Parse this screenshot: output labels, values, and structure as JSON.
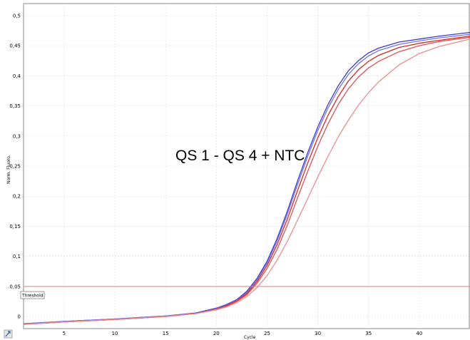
{
  "chart_data": {
    "type": "line",
    "title": "",
    "xlabel": "Cycle",
    "ylabel": "Norm. Fluoro.",
    "xlim": [
      1,
      45
    ],
    "ylim": [
      -0.02,
      0.52
    ],
    "x_ticks": [
      5,
      10,
      15,
      20,
      25,
      30,
      35,
      40
    ],
    "x_tick_labels": [
      "5",
      "10",
      "15",
      "20",
      "25",
      "30",
      "35",
      "40"
    ],
    "y_ticks": [
      0,
      0.05,
      0.1,
      0.15,
      0.2,
      0.25,
      0.3,
      0.35,
      0.4,
      0.45,
      0.5
    ],
    "y_tick_labels": [
      "0",
      "0,05",
      "0,1",
      "0,15",
      "0,2",
      "0,25",
      "0,3",
      "0,35",
      "0,4",
      "0,45",
      "0,5"
    ],
    "grid": true,
    "annotation": "QS 1 - QS 4 + NTC",
    "threshold": {
      "label": "Threshold",
      "value": 0.05,
      "color": "#e87a7a"
    },
    "series": [
      {
        "color": "#3a3ad0",
        "values": [
          [
            1,
            -0.012
          ],
          [
            5,
            -0.008
          ],
          [
            10,
            -0.004
          ],
          [
            15,
            0.001
          ],
          [
            18,
            0.006
          ],
          [
            20,
            0.014
          ],
          [
            21,
            0.02
          ],
          [
            22,
            0.028
          ],
          [
            23,
            0.042
          ],
          [
            24,
            0.063
          ],
          [
            25,
            0.092
          ],
          [
            26,
            0.13
          ],
          [
            27,
            0.175
          ],
          [
            28,
            0.225
          ],
          [
            29,
            0.272
          ],
          [
            30,
            0.315
          ],
          [
            31,
            0.352
          ],
          [
            32,
            0.383
          ],
          [
            33,
            0.408
          ],
          [
            34,
            0.425
          ],
          [
            35,
            0.438
          ],
          [
            36,
            0.446
          ],
          [
            38,
            0.456
          ],
          [
            40,
            0.461
          ],
          [
            42,
            0.466
          ],
          [
            45,
            0.472
          ]
        ]
      },
      {
        "color": "#7474e0",
        "values": [
          [
            1,
            -0.012
          ],
          [
            5,
            -0.008
          ],
          [
            10,
            -0.004
          ],
          [
            15,
            0.001
          ],
          [
            18,
            0.005
          ],
          [
            20,
            0.013
          ],
          [
            21,
            0.019
          ],
          [
            22,
            0.027
          ],
          [
            23,
            0.04
          ],
          [
            24,
            0.061
          ],
          [
            25,
            0.089
          ],
          [
            26,
            0.126
          ],
          [
            27,
            0.17
          ],
          [
            28,
            0.219
          ],
          [
            29,
            0.266
          ],
          [
            30,
            0.309
          ],
          [
            31,
            0.346
          ],
          [
            32,
            0.377
          ],
          [
            33,
            0.402
          ],
          [
            34,
            0.42
          ],
          [
            35,
            0.433
          ],
          [
            36,
            0.442
          ],
          [
            38,
            0.452
          ],
          [
            40,
            0.458
          ],
          [
            42,
            0.463
          ],
          [
            45,
            0.469
          ]
        ]
      },
      {
        "color": "#d42626",
        "values": [
          [
            1,
            -0.013
          ],
          [
            5,
            -0.009
          ],
          [
            10,
            -0.005
          ],
          [
            15,
            0.0
          ],
          [
            18,
            0.005
          ],
          [
            20,
            0.012
          ],
          [
            21,
            0.018
          ],
          [
            22,
            0.026
          ],
          [
            23,
            0.038
          ],
          [
            24,
            0.058
          ],
          [
            25,
            0.085
          ],
          [
            26,
            0.12
          ],
          [
            27,
            0.162
          ],
          [
            28,
            0.209
          ],
          [
            29,
            0.255
          ],
          [
            30,
            0.297
          ],
          [
            31,
            0.334
          ],
          [
            32,
            0.365
          ],
          [
            33,
            0.391
          ],
          [
            34,
            0.41
          ],
          [
            35,
            0.424
          ],
          [
            36,
            0.434
          ],
          [
            38,
            0.447
          ],
          [
            40,
            0.454
          ],
          [
            42,
            0.459
          ],
          [
            45,
            0.466
          ]
        ]
      },
      {
        "color": "#e05050",
        "values": [
          [
            1,
            -0.013
          ],
          [
            5,
            -0.009
          ],
          [
            10,
            -0.005
          ],
          [
            15,
            0.0
          ],
          [
            18,
            0.005
          ],
          [
            20,
            0.012
          ],
          [
            21,
            0.017
          ],
          [
            22,
            0.025
          ],
          [
            23,
            0.036
          ],
          [
            24,
            0.055
          ],
          [
            25,
            0.08
          ],
          [
            26,
            0.112
          ],
          [
            27,
            0.152
          ],
          [
            28,
            0.197
          ],
          [
            29,
            0.241
          ],
          [
            30,
            0.283
          ],
          [
            31,
            0.32
          ],
          [
            32,
            0.352
          ],
          [
            33,
            0.378
          ],
          [
            34,
            0.398
          ],
          [
            35,
            0.413
          ],
          [
            36,
            0.424
          ],
          [
            38,
            0.44
          ],
          [
            40,
            0.45
          ],
          [
            42,
            0.457
          ],
          [
            45,
            0.464
          ]
        ]
      },
      {
        "color": "#ec8c8c",
        "values": [
          [
            1,
            -0.013
          ],
          [
            5,
            -0.009
          ],
          [
            10,
            -0.005
          ],
          [
            15,
            0.0
          ],
          [
            18,
            0.005
          ],
          [
            20,
            0.011
          ],
          [
            21,
            0.016
          ],
          [
            22,
            0.023
          ],
          [
            23,
            0.033
          ],
          [
            24,
            0.048
          ],
          [
            25,
            0.068
          ],
          [
            26,
            0.094
          ],
          [
            27,
            0.125
          ],
          [
            28,
            0.16
          ],
          [
            29,
            0.196
          ],
          [
            30,
            0.232
          ],
          [
            31,
            0.266
          ],
          [
            32,
            0.298
          ],
          [
            33,
            0.326
          ],
          [
            34,
            0.351
          ],
          [
            35,
            0.372
          ],
          [
            36,
            0.39
          ],
          [
            38,
            0.418
          ],
          [
            40,
            0.437
          ],
          [
            42,
            0.449
          ],
          [
            45,
            0.461
          ]
        ]
      }
    ]
  }
}
